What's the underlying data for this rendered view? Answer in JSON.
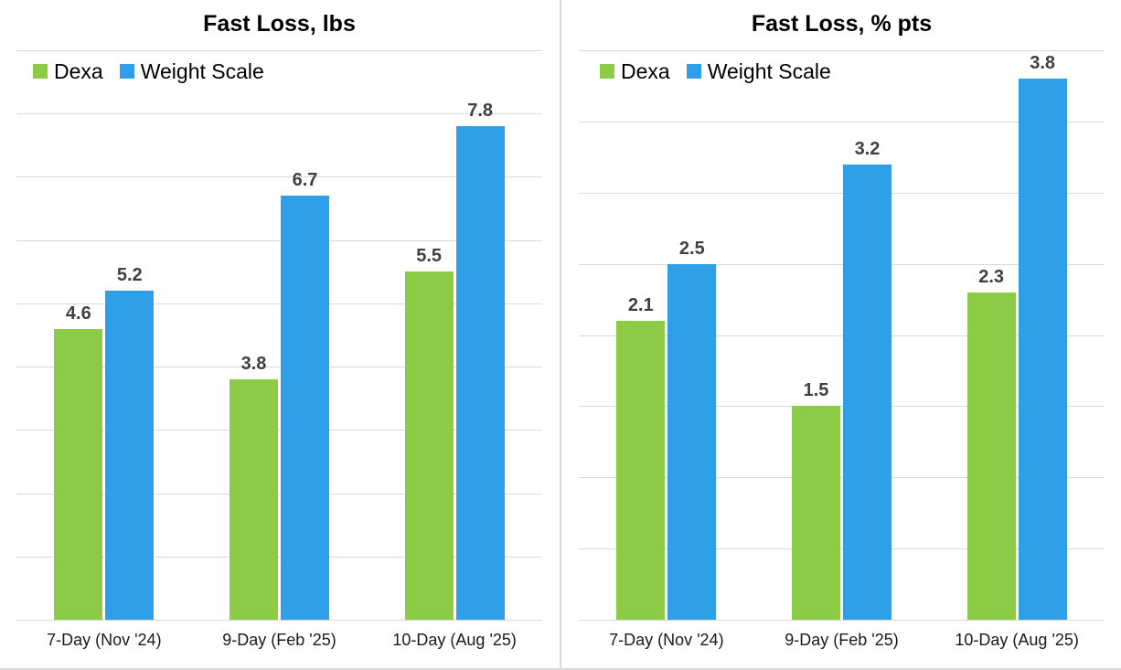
{
  "page": {
    "background": "#ffffff",
    "divider_color": "#d9d9d9",
    "bottom_border_color": "#d9d9d9"
  },
  "colors": {
    "dexa": "#8BCB45",
    "weight_scale": "#2FA0E8",
    "gridline": "#d9d9d9",
    "axis_line": "#d9d9d9",
    "title_text": "#000000",
    "legend_text": "#000000",
    "data_label_text": "#3f3f3f",
    "axis_label_text": "#1a1a1a"
  },
  "chart_data": [
    {
      "type": "bar",
      "title": "Fast Loss, lbs",
      "categories": [
        "7-Day (Nov '24)",
        "9-Day (Feb '25)",
        "10-Day (Aug '25)"
      ],
      "series": [
        {
          "name": "Dexa",
          "color": "#8BCB45",
          "values": [
            4.6,
            3.8,
            5.5
          ]
        },
        {
          "name": "Weight Scale",
          "color": "#2FA0E8",
          "values": [
            5.2,
            6.7,
            7.8
          ]
        }
      ],
      "ylim": [
        0,
        9
      ],
      "grid_step": 1,
      "grid": true,
      "legend_position": "top-left",
      "data_labels": true,
      "y_axis_tick_labels": false
    },
    {
      "type": "bar",
      "title": "Fast Loss, % pts",
      "categories": [
        "7-Day (Nov '24)",
        "9-Day (Feb '25)",
        "10-Day (Aug '25)"
      ],
      "series": [
        {
          "name": "Dexa",
          "color": "#8BCB45",
          "values": [
            2.1,
            1.5,
            2.3
          ]
        },
        {
          "name": "Weight Scale",
          "color": "#2FA0E8",
          "values": [
            2.5,
            3.2,
            3.8
          ]
        }
      ],
      "ylim": [
        0,
        4
      ],
      "grid_step": 0.5,
      "grid": true,
      "legend_position": "top-left",
      "data_labels": true,
      "y_axis_tick_labels": false
    }
  ]
}
